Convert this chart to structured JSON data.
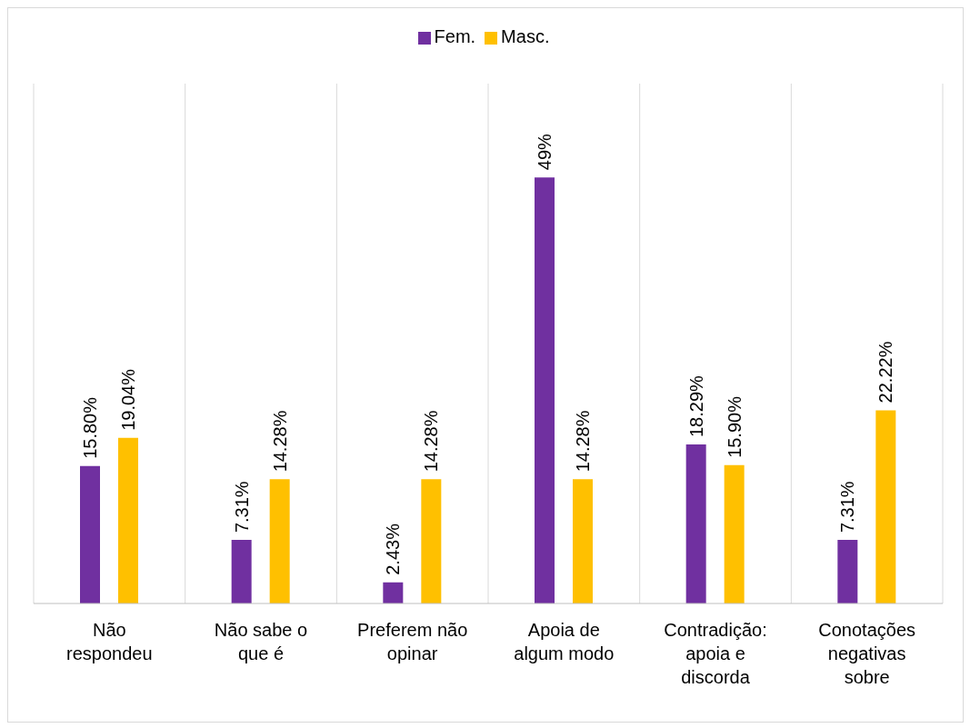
{
  "chart_data": {
    "type": "bar",
    "categories": [
      "Não respondeu",
      "Não sabe o que é",
      "Preferem não opinar",
      "Apoia de algum modo",
      "Contradição: apoia e discorda",
      "Conotações negativas sobre"
    ],
    "series": [
      {
        "name": "Fem.",
        "color": "#7030a0",
        "values": [
          15.8,
          7.31,
          2.43,
          49,
          18.29,
          7.31
        ],
        "value_labels": [
          "15.80%",
          "7.31%",
          "2.43%",
          "49%",
          "18.29%",
          "7.31%"
        ]
      },
      {
        "name": "Masc.",
        "color": "#ffc000",
        "values": [
          19.04,
          14.28,
          14.28,
          14.28,
          15.9,
          22.22
        ],
        "value_labels": [
          "19.04%",
          "14.28%",
          "14.28%",
          "14.28%",
          "15.90%",
          "22.22%"
        ]
      }
    ],
    "grid": "x",
    "legend": "top"
  }
}
